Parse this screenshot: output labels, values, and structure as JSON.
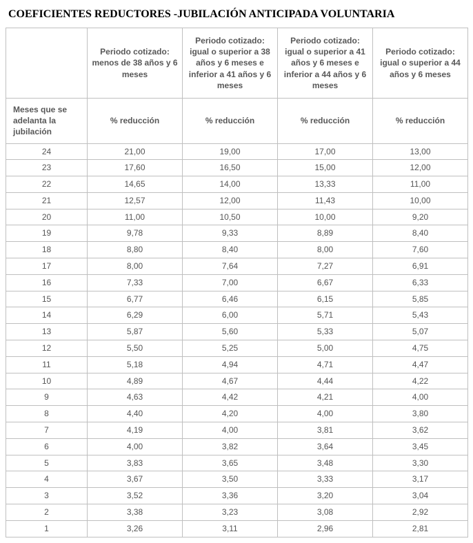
{
  "title": "COEFICIENTES REDUCTORES -JUBILACIÓN ANTICIPADA VOLUNTARIA",
  "columns": {
    "c0_r1": "",
    "c1_r1": "Periodo cotizado: menos de 38 años y 6 meses",
    "c2_r1": "Periodo cotizado: igual o superior a 38 años y 6 meses e inferior a 41 años y 6 meses",
    "c3_r1": "Periodo cotizado: igual o superior a 41 años y 6 meses e inferior a 44 años y 6 meses",
    "c4_r1": "Periodo cotizado: igual o superior a 44 años y 6 meses",
    "c0_r2": "Meses que se adelanta la jubilación",
    "c1_r2": "% reducción",
    "c2_r2": "% reducción",
    "c3_r2": "% reducción",
    "c4_r2": "% reducción"
  },
  "rows": [
    [
      "24",
      "21,00",
      "19,00",
      "17,00",
      "13,00"
    ],
    [
      "23",
      "17,60",
      "16,50",
      "15,00",
      "12,00"
    ],
    [
      "22",
      "14,65",
      "14,00",
      "13,33",
      "11,00"
    ],
    [
      "21",
      "12,57",
      "12,00",
      "11,43",
      "10,00"
    ],
    [
      "20",
      "11,00",
      "10,50",
      "10,00",
      "9,20"
    ],
    [
      "19",
      "9,78",
      "9,33",
      "8,89",
      "8,40"
    ],
    [
      "18",
      "8,80",
      "8,40",
      "8,00",
      "7,60"
    ],
    [
      "17",
      "8,00",
      "7,64",
      "7,27",
      "6,91"
    ],
    [
      "16",
      "7,33",
      "7,00",
      "6,67",
      "6,33"
    ],
    [
      "15",
      "6,77",
      "6,46",
      "6,15",
      "5,85"
    ],
    [
      "14",
      "6,29",
      "6,00",
      "5,71",
      "5,43"
    ],
    [
      "13",
      "5,87",
      "5,60",
      "5,33",
      "5,07"
    ],
    [
      "12",
      "5,50",
      "5,25",
      "5,00",
      "4,75"
    ],
    [
      "11",
      "5,18",
      "4,94",
      "4,71",
      "4,47"
    ],
    [
      "10",
      "4,89",
      "4,67",
      "4,44",
      "4,22"
    ],
    [
      "9",
      "4,63",
      "4,42",
      "4,21",
      "4,00"
    ],
    [
      "8",
      "4,40",
      "4,20",
      "4,00",
      "3,80"
    ],
    [
      "7",
      "4,19",
      "4,00",
      "3,81",
      "3,62"
    ],
    [
      "6",
      "4,00",
      "3,82",
      "3,64",
      "3,45"
    ],
    [
      "5",
      "3,83",
      "3,65",
      "3,48",
      "3,30"
    ],
    [
      "4",
      "3,67",
      "3,50",
      "3,33",
      "3,17"
    ],
    [
      "3",
      "3,52",
      "3,36",
      "3,20",
      "3,04"
    ],
    [
      "2",
      "3,38",
      "3,23",
      "3,08",
      "2,92"
    ],
    [
      "1",
      "3,26",
      "3,11",
      "2,96",
      "2,81"
    ]
  ],
  "colors": {
    "border": "#bfbfbf",
    "text": "#555555",
    "title": "#000000",
    "background": "#ffffff"
  }
}
